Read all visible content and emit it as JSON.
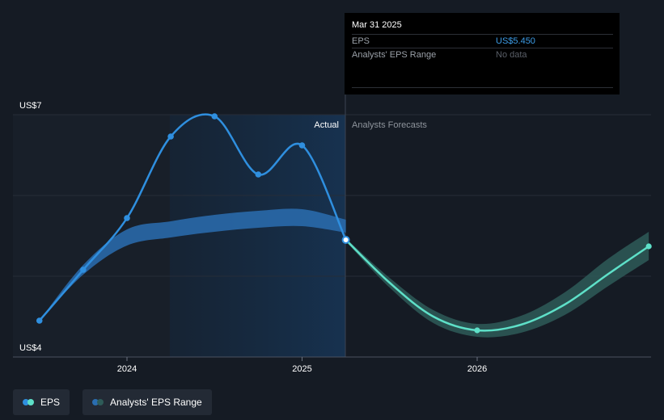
{
  "chart_data": {
    "type": "line",
    "title": "",
    "y_axis": {
      "min_label": "US$4",
      "max_label": "US$7",
      "ylim": [
        4,
        7
      ]
    },
    "x_ticks": [
      {
        "label": "2024",
        "x": 2024.0
      },
      {
        "label": "2025",
        "x": 2025.0
      },
      {
        "label": "2026",
        "x": 2026.0
      }
    ],
    "regions": {
      "actual_label": "Actual",
      "forecast_label": "Analysts Forecasts",
      "split_x": 2025.25
    },
    "series": [
      {
        "name": "EPS",
        "color": "#2f8fdf",
        "points": [
          {
            "x": 2023.5,
            "y": 4.45
          },
          {
            "x": 2023.75,
            "y": 5.08
          },
          {
            "x": 2024.0,
            "y": 5.72
          },
          {
            "x": 2024.25,
            "y": 6.73
          },
          {
            "x": 2024.5,
            "y": 6.98
          },
          {
            "x": 2024.75,
            "y": 6.26
          },
          {
            "x": 2025.0,
            "y": 6.62
          },
          {
            "x": 2025.25,
            "y": 5.45
          }
        ]
      },
      {
        "name": "EPS Forecast",
        "color": "#5ee0c8",
        "points": [
          {
            "x": 2025.25,
            "y": 5.45
          },
          {
            "x": 2025.5,
            "y": 4.92
          },
          {
            "x": 2025.75,
            "y": 4.5
          },
          {
            "x": 2026.0,
            "y": 4.33
          },
          {
            "x": 2026.25,
            "y": 4.4
          },
          {
            "x": 2026.5,
            "y": 4.65
          },
          {
            "x": 2026.75,
            "y": 5.03
          },
          {
            "x": 2026.98,
            "y": 5.37
          }
        ]
      }
    ],
    "ranges": [
      {
        "name": "Analysts' EPS Range (historical)",
        "color": "#2a6db0",
        "points": [
          {
            "x": 2023.5,
            "y_low": 4.45,
            "y_high": 4.45
          },
          {
            "x": 2023.75,
            "y_low": 5.02,
            "y_high": 5.14
          },
          {
            "x": 2024.0,
            "y_low": 5.38,
            "y_high": 5.58
          },
          {
            "x": 2024.25,
            "y_low": 5.48,
            "y_high": 5.68
          },
          {
            "x": 2024.5,
            "y_low": 5.55,
            "y_high": 5.76
          },
          {
            "x": 2024.75,
            "y_low": 5.6,
            "y_high": 5.81
          },
          {
            "x": 2025.0,
            "y_low": 5.62,
            "y_high": 5.83
          },
          {
            "x": 2025.25,
            "y_low": 5.54,
            "y_high": 5.7
          }
        ]
      },
      {
        "name": "Analysts' EPS Range (forecast)",
        "color": "#2e5b58",
        "points": [
          {
            "x": 2025.25,
            "y_low": 5.43,
            "y_high": 5.47
          },
          {
            "x": 2025.5,
            "y_low": 4.86,
            "y_high": 4.98
          },
          {
            "x": 2025.75,
            "y_low": 4.42,
            "y_high": 4.58
          },
          {
            "x": 2026.0,
            "y_low": 4.25,
            "y_high": 4.41
          },
          {
            "x": 2026.25,
            "y_low": 4.3,
            "y_high": 4.51
          },
          {
            "x": 2026.5,
            "y_low": 4.52,
            "y_high": 4.8
          },
          {
            "x": 2026.75,
            "y_low": 4.88,
            "y_high": 5.22
          },
          {
            "x": 2026.98,
            "y_low": 5.2,
            "y_high": 5.55
          }
        ]
      }
    ],
    "legend": [
      "EPS",
      "Analysts' EPS Range"
    ]
  },
  "tooltip": {
    "date": "Mar 31 2025",
    "rows": [
      {
        "label": "EPS",
        "value": "US$5.450"
      },
      {
        "label": "Analysts' EPS Range",
        "value": "No data"
      }
    ]
  },
  "legend_items": [
    {
      "label": "EPS",
      "color_a": "#2f8fdf",
      "color_b": "#5ee0c8"
    },
    {
      "label": "Analysts' EPS Range",
      "color_a": "#2a6db0",
      "color_b": "#2e5b58"
    }
  ]
}
